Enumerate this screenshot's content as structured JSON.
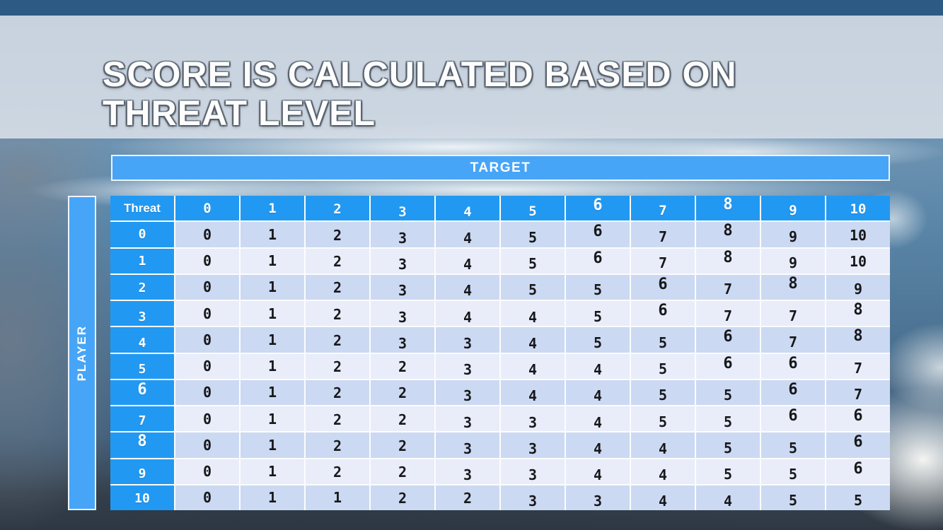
{
  "slide": {
    "title": {
      "line1": "SCORE IS CALCULATED BASED ON",
      "line2": "THREAT LEVEL"
    },
    "axis_labels": {
      "target": "TARGET",
      "player": "PLAYER"
    }
  },
  "table": {
    "corner_header": "Threat",
    "col_headers": [
      "0",
      "1",
      "2",
      "3",
      "4",
      "5",
      "6",
      "7",
      "8",
      "9",
      "10"
    ],
    "rows": [
      {
        "threat": "0",
        "values": [
          "0",
          "1",
          "2",
          "3",
          "4",
          "5",
          "6",
          "7",
          "8",
          "9",
          "10"
        ]
      },
      {
        "threat": "1",
        "values": [
          "0",
          "1",
          "2",
          "3",
          "4",
          "5",
          "6",
          "7",
          "8",
          "9",
          "10"
        ]
      },
      {
        "threat": "2",
        "values": [
          "0",
          "1",
          "2",
          "3",
          "4",
          "5",
          "5",
          "6",
          "7",
          "8",
          "9"
        ]
      },
      {
        "threat": "3",
        "values": [
          "0",
          "1",
          "2",
          "3",
          "4",
          "4",
          "5",
          "6",
          "7",
          "7",
          "8"
        ]
      },
      {
        "threat": "4",
        "values": [
          "0",
          "1",
          "2",
          "3",
          "3",
          "4",
          "5",
          "5",
          "6",
          "7",
          "8"
        ]
      },
      {
        "threat": "5",
        "values": [
          "0",
          "1",
          "2",
          "2",
          "3",
          "4",
          "4",
          "5",
          "6",
          "6",
          "7"
        ]
      },
      {
        "threat": "6",
        "values": [
          "0",
          "1",
          "2",
          "2",
          "3",
          "4",
          "4",
          "5",
          "5",
          "6",
          "7"
        ]
      },
      {
        "threat": "7",
        "values": [
          "0",
          "1",
          "2",
          "2",
          "3",
          "3",
          "4",
          "5",
          "5",
          "6",
          "6"
        ]
      },
      {
        "threat": "8",
        "values": [
          "0",
          "1",
          "2",
          "2",
          "3",
          "3",
          "4",
          "4",
          "5",
          "5",
          "6"
        ]
      },
      {
        "threat": "9",
        "values": [
          "0",
          "1",
          "2",
          "2",
          "3",
          "3",
          "4",
          "4",
          "5",
          "5",
          "6"
        ]
      },
      {
        "threat": "10",
        "values": [
          "0",
          "1",
          "1",
          "2",
          "2",
          "3",
          "3",
          "4",
          "4",
          "5",
          "5"
        ]
      }
    ]
  },
  "colors": {
    "header_cell_blue": "#2199f2",
    "band_bar_blue": "#47a5f7",
    "row_band_dark": "#ccd9f2",
    "row_band_light": "#e9edf9",
    "cell_text": "#17181b",
    "header_text": "#ffffff",
    "title_text": "#fdfdfd",
    "title_band": "#d4dce5"
  },
  "chart_data": {
    "type": "table",
    "title": "SCORE IS CALCULATED BASED ON THREAT LEVEL",
    "x_axis_label": "TARGET",
    "y_axis_label": "PLAYER",
    "corner_label": "Threat",
    "columns": [
      0,
      1,
      2,
      3,
      4,
      5,
      6,
      7,
      8,
      9,
      10
    ],
    "row_labels": [
      0,
      1,
      2,
      3,
      4,
      5,
      6,
      7,
      8,
      9,
      10
    ],
    "matrix": [
      [
        0,
        1,
        2,
        3,
        4,
        5,
        6,
        7,
        8,
        9,
        10
      ],
      [
        0,
        1,
        2,
        3,
        4,
        5,
        6,
        7,
        8,
        9,
        10
      ],
      [
        0,
        1,
        2,
        3,
        4,
        5,
        5,
        6,
        7,
        8,
        9
      ],
      [
        0,
        1,
        2,
        3,
        4,
        4,
        5,
        6,
        7,
        7,
        8
      ],
      [
        0,
        1,
        2,
        3,
        3,
        4,
        5,
        5,
        6,
        7,
        8
      ],
      [
        0,
        1,
        2,
        2,
        3,
        4,
        4,
        5,
        6,
        6,
        7
      ],
      [
        0,
        1,
        2,
        2,
        3,
        4,
        4,
        5,
        5,
        6,
        7
      ],
      [
        0,
        1,
        2,
        2,
        3,
        3,
        4,
        5,
        5,
        6,
        6
      ],
      [
        0,
        1,
        2,
        2,
        3,
        3,
        4,
        4,
        5,
        5,
        6
      ],
      [
        0,
        1,
        2,
        2,
        3,
        3,
        4,
        4,
        5,
        5,
        6
      ],
      [
        0,
        1,
        1,
        2,
        2,
        3,
        3,
        4,
        4,
        5,
        5
      ]
    ]
  }
}
